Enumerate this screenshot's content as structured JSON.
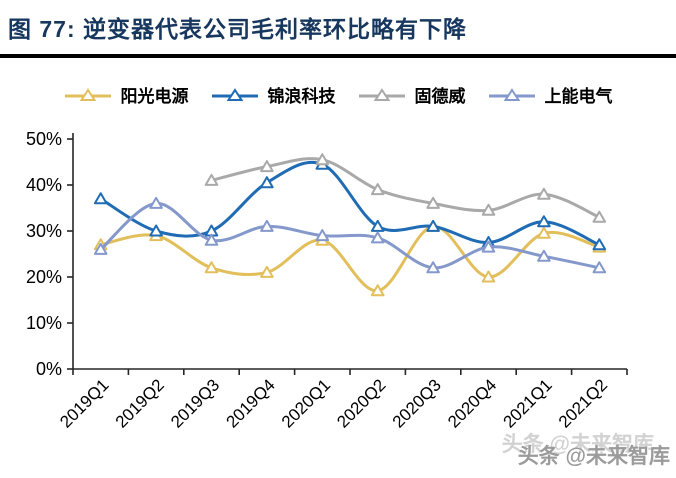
{
  "header": {
    "title": "图 77:  逆变器代表公司毛利率环比略有下降"
  },
  "watermark": {
    "text": "头条 @未来智库"
  },
  "colors": {
    "title": "#17375E",
    "divider": "#000000",
    "axis": "#262626",
    "tick_label": "#000000"
  },
  "chart_data": {
    "type": "line",
    "title": "逆变器代表公司毛利率环比略有下降",
    "categories": [
      "2019Q1",
      "2019Q2",
      "2019Q3",
      "2019Q4",
      "2020Q1",
      "2020Q2",
      "2020Q3",
      "2020Q4",
      "2021Q1",
      "2021Q2"
    ],
    "series": [
      {
        "name": "阳光电源",
        "color": "#E2BF5B",
        "values": [
          27,
          29,
          22,
          21,
          28,
          17,
          31,
          20,
          29.5,
          26.5
        ]
      },
      {
        "name": "锦浪科技",
        "color": "#1F6CB4",
        "values": [
          37,
          30,
          30,
          40.5,
          44.5,
          31,
          31,
          27.5,
          32,
          27
        ]
      },
      {
        "name": "固德威",
        "color": "#A9A9A9",
        "values": [
          null,
          null,
          41,
          44,
          45.5,
          39,
          36,
          34.5,
          38,
          33
        ]
      },
      {
        "name": "上能电气",
        "color": "#8498CC",
        "values": [
          26,
          36,
          28,
          31,
          29,
          28.5,
          22,
          26.5,
          24.5,
          22
        ]
      }
    ],
    "xlabel": "",
    "ylabel": "",
    "ylim": [
      0,
      50
    ],
    "y_ticks": [
      "0%",
      "10%",
      "20%",
      "30%",
      "40%",
      "50%"
    ],
    "grid": false,
    "legend_position": "top",
    "marker": "triangle-open",
    "line_style": "smooth"
  }
}
